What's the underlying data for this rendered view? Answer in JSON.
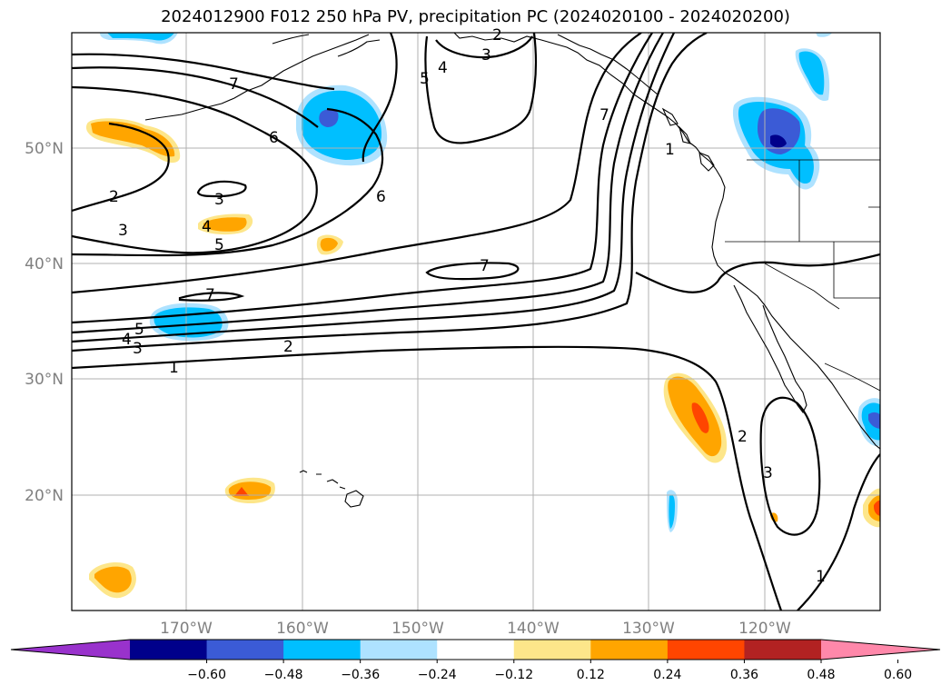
{
  "title": "2024012900 F012 250 hPa PV, precipitation PC (2024020100 - 2024020200)",
  "map": {
    "lat_labels": [
      "50°N",
      "40°N",
      "30°N",
      "20°N"
    ],
    "lon_labels": [
      "170°W",
      "160°W",
      "150°W",
      "140°W",
      "130°W",
      "120°W"
    ],
    "gridlines": true,
    "contour_variable": "250 hPa PV",
    "contour_levels_labeled": [
      "1",
      "2",
      "3",
      "4",
      "5",
      "6",
      "7"
    ],
    "shading_variable": "precipitation PC"
  },
  "colorbar": {
    "ticks": [
      "−0.60",
      "−0.48",
      "−0.36",
      "−0.24",
      "−0.12",
      "0.12",
      "0.24",
      "0.36",
      "0.48",
      "0.60"
    ],
    "colors": [
      "#9932cc",
      "#00008b",
      "#3b5bd6",
      "#00bfff",
      "#aee2ff",
      "#ffffff",
      "#fde68a",
      "#ffa500",
      "#ff4500",
      "#b22222",
      "#ff88aa"
    ],
    "extend": "both"
  }
}
